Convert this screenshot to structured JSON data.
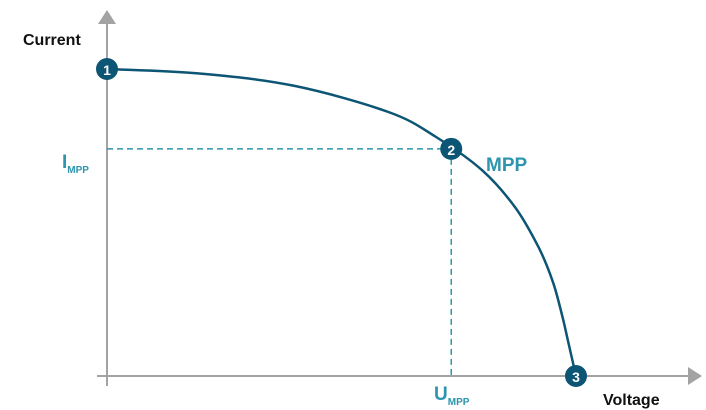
{
  "chart_data": {
    "type": "line",
    "xlabel": "Voltage",
    "ylabel": "Current",
    "xlim": [
      0,
      1
    ],
    "ylim": [
      0,
      1
    ],
    "grid": false,
    "series": [
      {
        "x": [
          0,
          0.2,
          0.4,
          0.6,
          0.7,
          0.8,
          0.87,
          0.92,
          0.95,
          0.97,
          0.985,
          1.0
        ],
        "y": [
          1.0,
          0.985,
          0.945,
          0.86,
          0.78,
          0.67,
          0.55,
          0.42,
          0.31,
          0.2,
          0.1,
          0.0
        ]
      }
    ],
    "points": [
      {
        "label": "1",
        "x": 0,
        "y": 1.0
      },
      {
        "label": "2",
        "x": 0.734,
        "y": 0.74,
        "name": "MPP"
      },
      {
        "label": "3",
        "x": 1.0,
        "y": 0.0
      }
    ],
    "reference_labels": {
      "current": {
        "main": "I",
        "sub": "MPP"
      },
      "voltage": {
        "main": "U",
        "sub": "MPP"
      }
    }
  },
  "colors": {
    "curve": "#0d5575",
    "marker": "#0d5575",
    "reference": "#2d95ad",
    "axis": "#a3a3a3"
  }
}
